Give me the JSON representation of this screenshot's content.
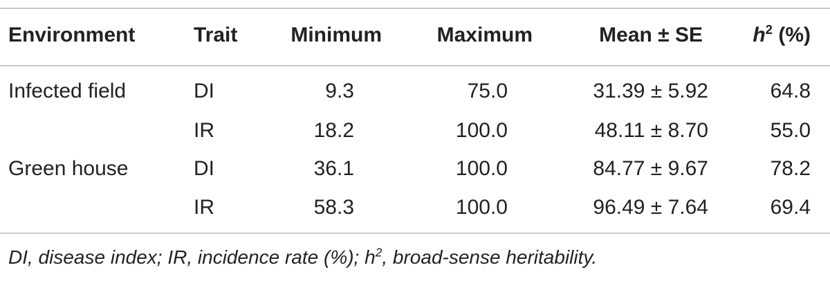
{
  "table": {
    "headers": {
      "environment": "Environment",
      "trait": "Trait",
      "minimum": "Minimum",
      "maximum": "Maximum",
      "mean": "Mean ± SE",
      "h2_var": "h",
      "h2_sup": "2",
      "h2_unit": " (%)"
    },
    "rows": [
      {
        "environment": "Infected field",
        "trait": "DI",
        "minimum": "9.3",
        "maximum": "75.0",
        "mean": "31.39 ± 5.92",
        "h2": "64.8"
      },
      {
        "environment": "",
        "trait": "IR",
        "minimum": "18.2",
        "maximum": "100.0",
        "mean": "48.11 ± 8.70",
        "h2": "55.0"
      },
      {
        "environment": "Green house",
        "trait": "DI",
        "minimum": "36.1",
        "maximum": "100.0",
        "mean": "84.77 ± 9.67",
        "h2": "78.2"
      },
      {
        "environment": "",
        "trait": "IR",
        "minimum": "58.3",
        "maximum": "100.0",
        "mean": "96.49 ± 7.64",
        "h2": "69.4"
      }
    ]
  },
  "footnote": {
    "part1": "DI, disease index; IR, incidence rate (%); h",
    "sup": "2",
    "part2": ", broad-sense heritability."
  }
}
